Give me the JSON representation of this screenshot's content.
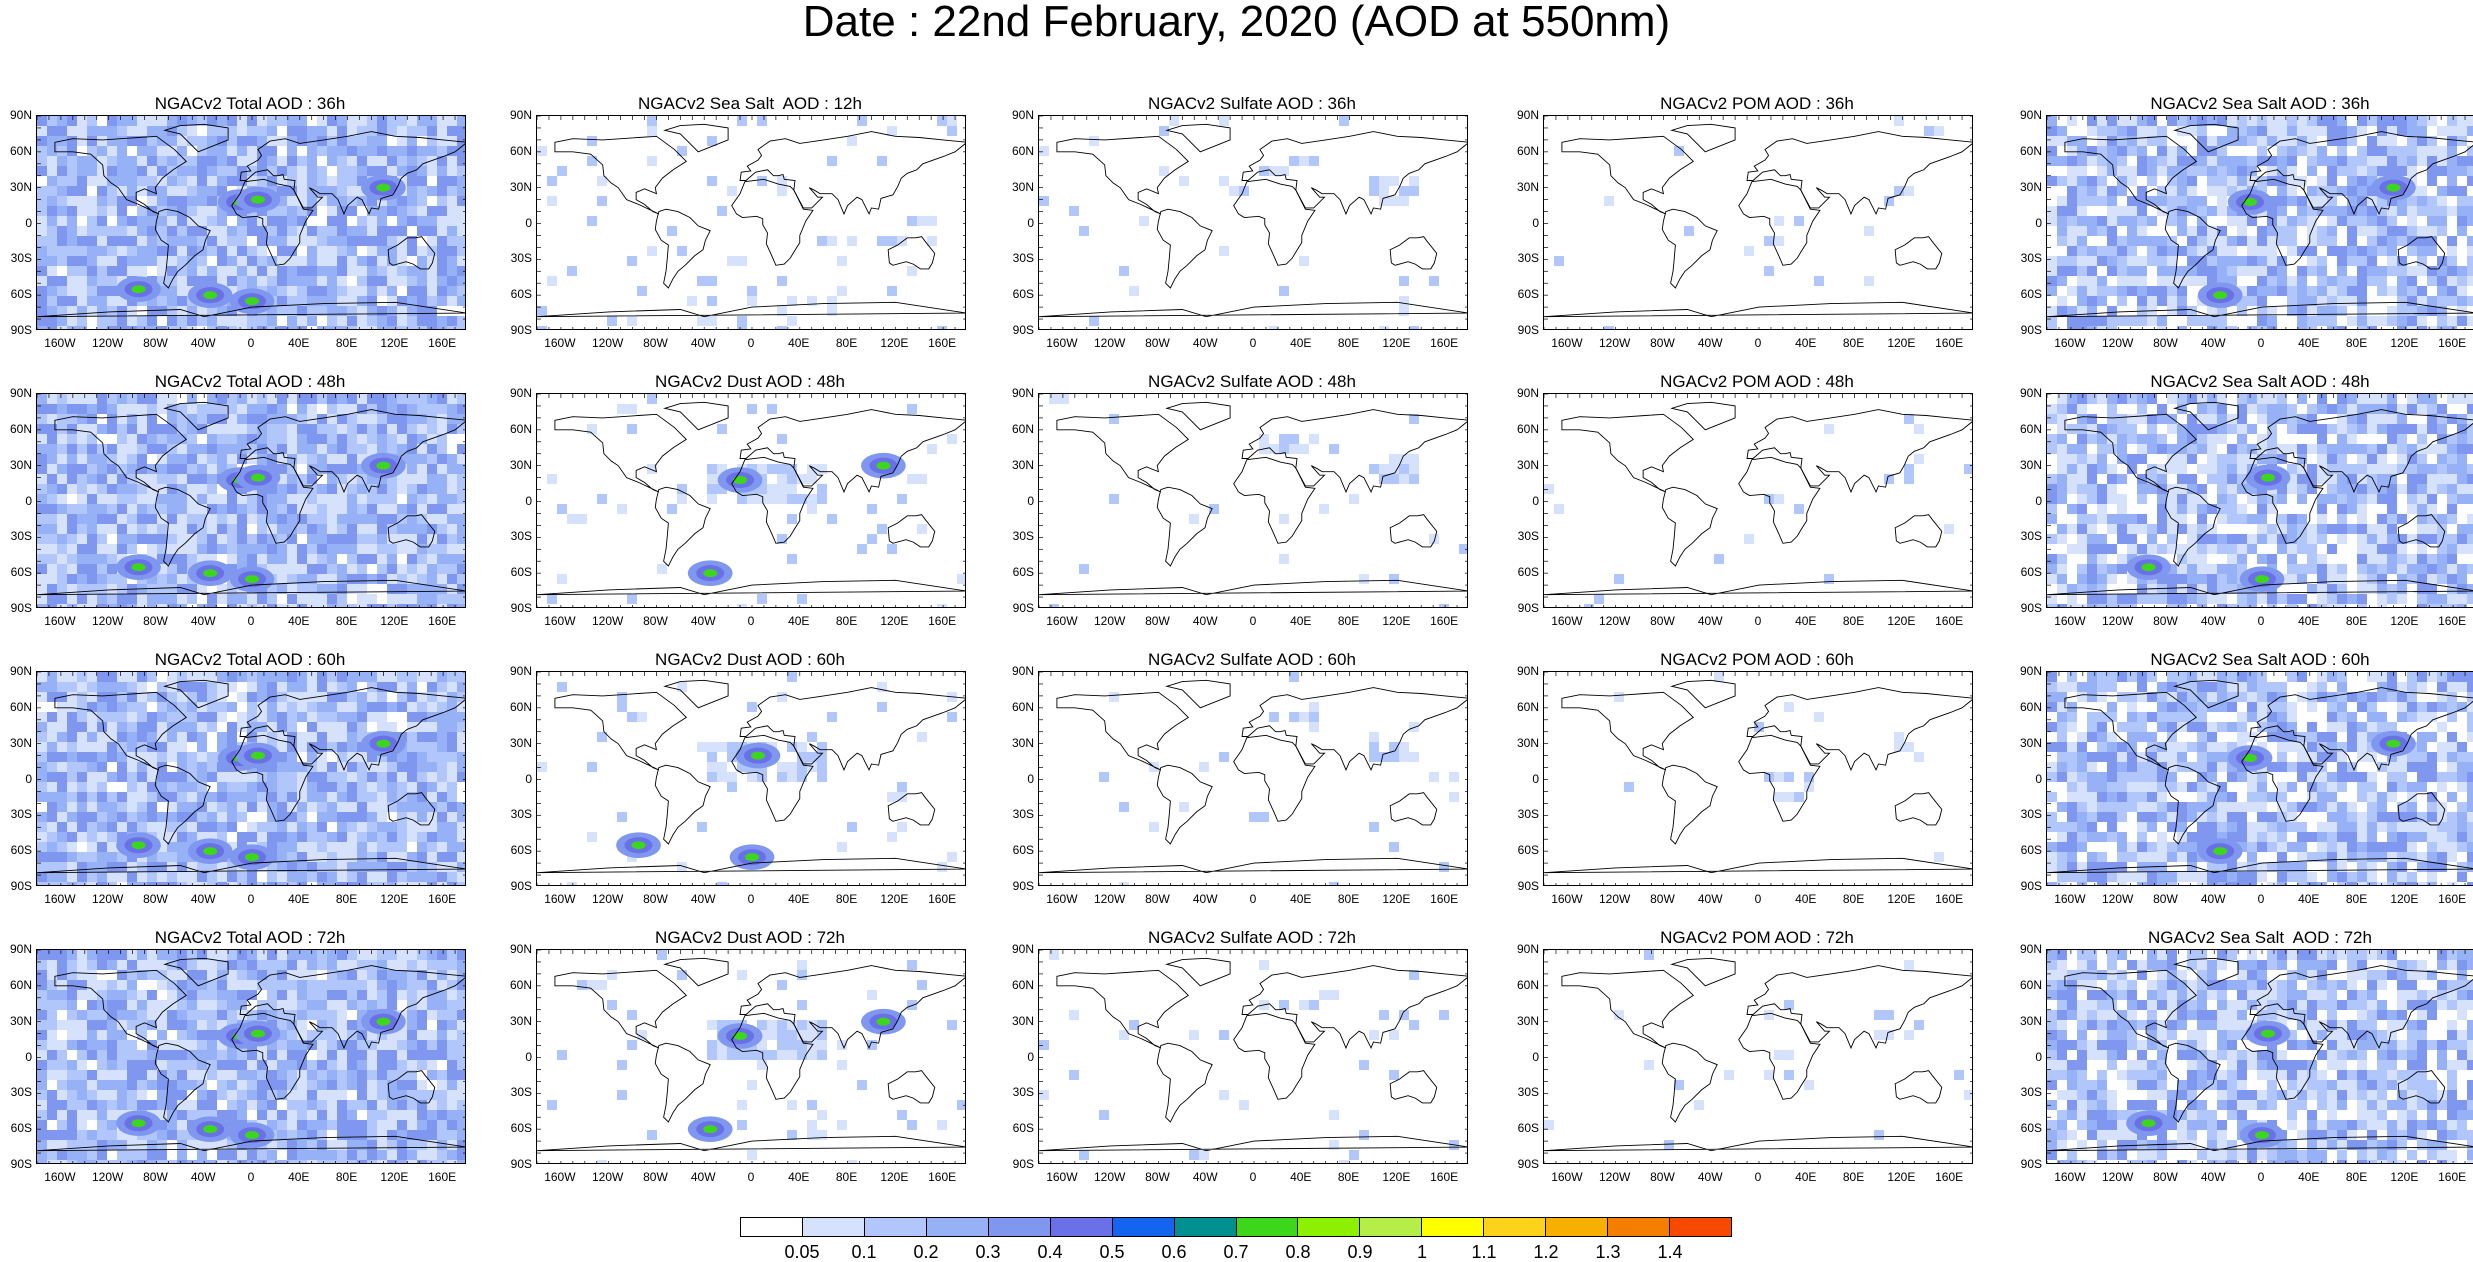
{
  "title": "Date : 22nd February, 2020 (AOD at 550nm)",
  "lat_labels": [
    "90N",
    "60N",
    "30N",
    "0",
    "30S",
    "60S",
    "90S"
  ],
  "lon_labels": [
    "160W",
    "120W",
    "80W",
    "40W",
    "0",
    "40E",
    "80E",
    "120E",
    "160E"
  ],
  "species_style": {
    "total": {
      "coverage": 0.95,
      "hotspots": true
    },
    "dust": {
      "coverage": 0.25,
      "hotspots": true
    },
    "sulfate": {
      "coverage": 0.12,
      "hotspots": false
    },
    "pom": {
      "coverage": 0.06,
      "hotspots": false
    },
    "seasalt12": {
      "coverage": 0.08,
      "hotspots": false
    },
    "seasalt": {
      "coverage": 0.8,
      "hotspots": true
    }
  },
  "panels": [
    {
      "title": "NGACv2 Total AOD : 36h",
      "kind": "total"
    },
    {
      "title": "NGACv2 Sea Salt  AOD : 12h",
      "kind": "seasalt12"
    },
    {
      "title": "NGACv2 Sulfate AOD : 36h",
      "kind": "sulfate"
    },
    {
      "title": "NGACv2 POM AOD : 36h",
      "kind": "pom"
    },
    {
      "title": "NGACv2 Sea Salt AOD : 36h",
      "kind": "seasalt"
    },
    {
      "title": "NGACv2 Total AOD : 48h",
      "kind": "total"
    },
    {
      "title": "NGACv2 Dust AOD : 48h",
      "kind": "dust"
    },
    {
      "title": "NGACv2 Sulfate AOD : 48h",
      "kind": "sulfate"
    },
    {
      "title": "NGACv2 POM AOD : 48h",
      "kind": "pom"
    },
    {
      "title": "NGACv2 Sea Salt AOD : 48h",
      "kind": "seasalt"
    },
    {
      "title": "NGACv2 Total AOD : 60h",
      "kind": "total"
    },
    {
      "title": "NGACv2 Dust AOD : 60h",
      "kind": "dust"
    },
    {
      "title": "NGACv2 Sulfate AOD : 60h",
      "kind": "sulfate"
    },
    {
      "title": "NGACv2 POM AOD : 60h",
      "kind": "pom"
    },
    {
      "title": "NGACv2 Sea Salt AOD : 60h",
      "kind": "seasalt"
    },
    {
      "title": "NGACv2 Total AOD : 72h",
      "kind": "total"
    },
    {
      "title": "NGACv2 Dust AOD : 72h",
      "kind": "dust"
    },
    {
      "title": "NGACv2 Sulfate AOD : 72h",
      "kind": "sulfate"
    },
    {
      "title": "NGACv2 POM AOD : 72h",
      "kind": "pom"
    },
    {
      "title": "NGACv2 Sea Salt  AOD : 72h",
      "kind": "seasalt"
    }
  ],
  "colorbar": {
    "colors": [
      "#ffffff",
      "#d6e1fc",
      "#b1c6fa",
      "#97b1f7",
      "#7f97ef",
      "#6a70e8",
      "#1464f0",
      "#00908f",
      "#3cd61a",
      "#8cf000",
      "#b6ee48",
      "#ffff00",
      "#fdd21a",
      "#f8b000",
      "#f57d00",
      "#f74a00",
      "#f52a14"
    ],
    "labels": [
      "0.05",
      "0.1",
      "0.2",
      "0.3",
      "0.4",
      "0.5",
      "0.6",
      "0.7",
      "0.8",
      "0.9",
      "1",
      "1.1",
      "1.2",
      "1.3",
      "1.4"
    ]
  }
}
